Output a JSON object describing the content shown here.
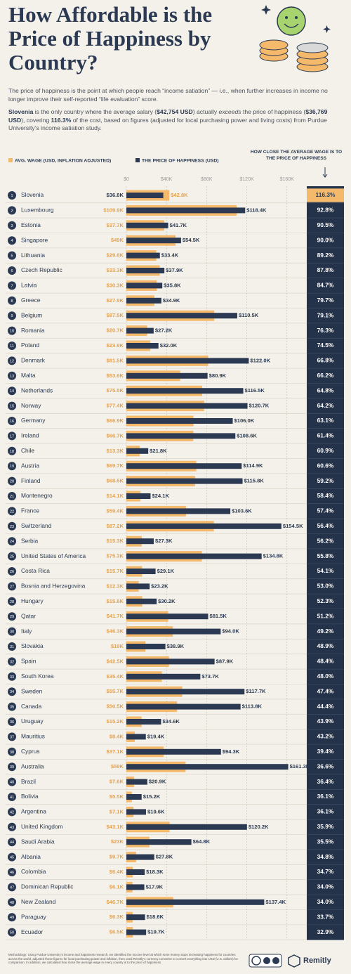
{
  "chart_data": {
    "type": "bar",
    "title": "How Affordable is the Price of Happiness by Country?",
    "description": "The price of happiness is the point at which people reach “income satiation” — i.e., when further increases in income no longer improve their self-reported “life evaluation” score.",
    "highlight": [
      "Slovenia",
      " is the only country where the average salary (",
      "$42,754 USD",
      ") actually ",
      "exceeds",
      " the price of happiness (",
      "$36,769 USD",
      "), covering ",
      "116.3%",
      " of the cost, based on figures (adjusted for local purchasing power and living costs) from Purdue University’s income satiation study."
    ],
    "ranks": [
      1,
      2,
      3,
      4,
      5,
      6,
      7,
      8,
      9,
      10,
      11,
      12,
      13,
      14,
      15,
      16,
      17,
      18,
      19,
      20,
      21,
      22,
      23,
      24,
      25,
      26,
      27,
      28,
      29,
      30,
      31,
      32,
      33,
      34,
      35,
      36,
      37,
      38,
      39,
      40,
      41,
      42,
      43,
      44,
      45,
      46,
      47,
      48,
      49,
      50
    ],
    "categories": [
      "Slovenia",
      "Luxembourg",
      "Estonia",
      "Singapore",
      "Lithuania",
      "Czech Republic",
      "Latvia",
      "Greece",
      "Belgium",
      "Romania",
      "Poland",
      "Denmark",
      "Malta",
      "Netherlands",
      "Norway",
      "Germany",
      "Ireland",
      "Chile",
      "Austria",
      "Finland",
      "Montenegro",
      "France",
      "Switzerland",
      "Serbia",
      "United States of America",
      "Costa Rica",
      "Bosnia and Herzegovina",
      "Hungary",
      "Qatar",
      "Italy",
      "Slovakia",
      "Spain",
      "South Korea",
      "Sweden",
      "Canada",
      "Uruguay",
      "Mauritius",
      "Cyprus",
      "Australia",
      "Brazil",
      "Bolivia",
      "Argentina",
      "United Kingdom",
      "Saudi Arabia",
      "Albania",
      "Colombia",
      "Dominican Republic",
      "New Zealand",
      "Paraguay",
      "Ecuador"
    ],
    "series": [
      {
        "name": "AVG. WAGE (USD, INFLATION ADJUSTED)",
        "color": "#f5b96b",
        "values": [
          42800,
          109900,
          37700,
          49000,
          29800,
          33300,
          30300,
          27900,
          87500,
          20700,
          23900,
          81500,
          53600,
          75500,
          77400,
          66900,
          66700,
          13300,
          69700,
          68500,
          14100,
          59400,
          87200,
          15300,
          75300,
          15700,
          12300,
          15800,
          41700,
          46300,
          19000,
          42500,
          35400,
          55700,
          50500,
          15200,
          8400,
          37100,
          59000,
          7600,
          5500,
          7100,
          43100,
          23000,
          9700,
          6400,
          6100,
          46700,
          6300,
          6500
        ],
        "value_labels": [
          "$42.8K",
          "$109.9K",
          "$37.7K",
          "$49K",
          "$29.8K",
          "$33.3K",
          "$30.3K",
          "$27.9K",
          "$87.5K",
          "$20.7K",
          "$23.9K",
          "$81.5K",
          "$53.6K",
          "$75.5K",
          "$77.4K",
          "$66.9K",
          "$66.7K",
          "$13.3K",
          "$69.7K",
          "$68.5K",
          "$14.1K",
          "$59.4K",
          "$87.2K",
          "$15.3K",
          "$75.3K",
          "$15.7K",
          "$12.3K",
          "$15.8K",
          "$41.7K",
          "$46.3K",
          "$19K",
          "$42.5K",
          "$35.4K",
          "$55.7K",
          "$50.5K",
          "$15.2K",
          "$8.4K",
          "$37.1K",
          "$59K",
          "$7.6K",
          "$5.5K",
          "$7.1K",
          "$43.1K",
          "$23K",
          "$9.7K",
          "$6.4K",
          "$6.1K",
          "$46.7K",
          "$6.3K",
          "$6.5K"
        ]
      },
      {
        "name": "THE PRICE OF HAPPINESS (USD)",
        "color": "#2b3a52",
        "values": [
          36800,
          118400,
          41700,
          54500,
          33400,
          37900,
          35800,
          34900,
          110500,
          27200,
          32000,
          122000,
          80900,
          116500,
          120700,
          106000,
          108600,
          21800,
          114900,
          115800,
          24100,
          103600,
          154500,
          27300,
          134800,
          29100,
          23200,
          30200,
          81500,
          94000,
          38900,
          87900,
          73700,
          117700,
          113800,
          34600,
          19400,
          94300,
          161300,
          20900,
          15200,
          19600,
          120200,
          64800,
          27800,
          18300,
          17900,
          137400,
          18600,
          19700
        ],
        "value_labels": [
          "$36.8K",
          "$118.4K",
          "$41.7K",
          "$54.5K",
          "$33.4K",
          "$37.9K",
          "$35.8K",
          "$34.9K",
          "$110.5K",
          "$27.2K",
          "$32.0K",
          "$122.0K",
          "$80.9K",
          "$116.5K",
          "$120.7K",
          "$106.0K",
          "$108.6K",
          "$21.8K",
          "$114.9K",
          "$115.8K",
          "$24.1K",
          "$103.6K",
          "$154.5K",
          "$27.3K",
          "$134.8K",
          "$29.1K",
          "$23.2K",
          "$30.2K",
          "$81.5K",
          "$94.0K",
          "$38.9K",
          "$87.9K",
          "$73.7K",
          "$117.7K",
          "$113.8K",
          "$34.6K",
          "$19.4K",
          "$94.3K",
          "$161.3K",
          "$20.9K",
          "$15.2K",
          "$19.6K",
          "$120.2K",
          "$64.8K",
          "$27.8K",
          "$18.3K",
          "$17.9K",
          "$137.4K",
          "$18.6K",
          "$19.7K"
        ]
      }
    ],
    "closeness": {
      "title": "HOW CLOSE THE AVERAGE WAGE IS TO THE PRICE OF HAPPINESS",
      "color": "#24324a",
      "values": [
        116.3,
        92.8,
        90.5,
        90.0,
        89.2,
        87.8,
        84.7,
        79.7,
        79.1,
        76.3,
        74.5,
        66.8,
        66.2,
        64.8,
        64.2,
        63.1,
        61.4,
        60.9,
        60.6,
        59.2,
        58.4,
        57.4,
        56.4,
        56.2,
        55.8,
        54.1,
        53.0,
        52.3,
        51.2,
        49.2,
        48.9,
        48.4,
        48.0,
        47.4,
        44.4,
        43.9,
        43.2,
        39.4,
        36.6,
        36.4,
        36.1,
        36.1,
        35.9,
        35.5,
        34.8,
        34.7,
        34.0,
        34.0,
        33.7,
        32.9
      ],
      "value_labels": [
        "116.3%",
        "92.8%",
        "90.5%",
        "90.0%",
        "89.2%",
        "87.8%",
        "84.7%",
        "79.7%",
        "79.1%",
        "76.3%",
        "74.5%",
        "66.8%",
        "66.2%",
        "64.8%",
        "64.2%",
        "63.1%",
        "61.4%",
        "60.9%",
        "60.6%",
        "59.2%",
        "58.4%",
        "57.4%",
        "56.4%",
        "56.2%",
        "55.8%",
        "54.1%",
        "53.0%",
        "52.3%",
        "51.2%",
        "49.2%",
        "48.9%",
        "48.4%",
        "48.0%",
        "47.4%",
        "44.4%",
        "43.9%",
        "43.2%",
        "39.4%",
        "36.6%",
        "36.4%",
        "36.1%",
        "36.1%",
        "35.9%",
        "35.5%",
        "34.8%",
        "34.7%",
        "34.0%",
        "34.0%",
        "33.7%",
        "32.9%"
      ]
    },
    "xlim": [
      0,
      170000
    ],
    "xticks": [
      {
        "value": 0,
        "label": "$0"
      },
      {
        "value": 40000,
        "label": "$40K"
      },
      {
        "value": 80000,
        "label": "$80K"
      },
      {
        "value": 120000,
        "label": "$120K"
      },
      {
        "value": 160000,
        "label": "$160K"
      }
    ],
    "grid": true,
    "methodology": "Methodology: Using Purdue University’s income and happiness research, we identified the income level at which more money stops increasing happiness for countries across the world, adjusted those figures for local purchasing power and inflation, then used Remitly’s currency converter to convert everything into USD (U.S. dollars) for comparison. In addition, we calculated how close the average wage in every country is to the price of happiness.",
    "brand": "Remitly"
  }
}
